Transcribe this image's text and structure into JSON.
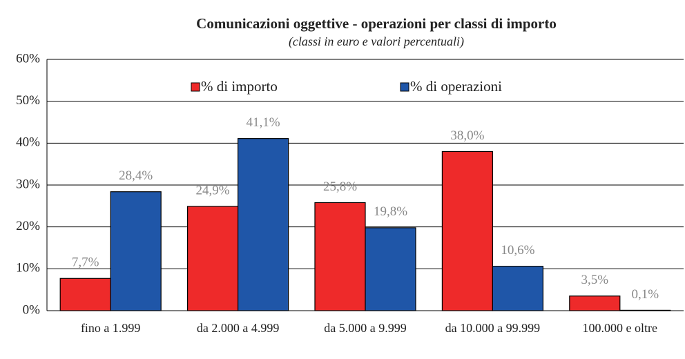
{
  "chart_data": {
    "type": "bar",
    "title": "Comunicazioni oggettive - operazioni per classi di importo",
    "subtitle": "(classi in euro e valori percentuali)",
    "categories": [
      "fino a 1.999",
      "da 2.000 a 4.999",
      "da 5.000 a 9.999",
      "da 10.000 a 99.999",
      "100.000 e oltre"
    ],
    "series": [
      {
        "name": "% di importo",
        "color": "#ee2a2a",
        "values": [
          7.7,
          24.9,
          25.8,
          38.0,
          3.5
        ],
        "value_labels": [
          "7,7%",
          "24,9%",
          "25,8%",
          "38,0%",
          "3,5%"
        ]
      },
      {
        "name": "% di operazioni",
        "color": "#1f56a8",
        "values": [
          28.4,
          41.1,
          19.8,
          10.6,
          0.1
        ],
        "value_labels": [
          "28,4%",
          "41,1%",
          "19,8%",
          "10,6%",
          "0,1%"
        ]
      }
    ],
    "ylim": [
      0,
      60
    ],
    "yticks": [
      {
        "value": 0,
        "label": "0%"
      },
      {
        "value": 10,
        "label": "10%"
      },
      {
        "value": 20,
        "label": "20%"
      },
      {
        "value": 30,
        "label": "30%"
      },
      {
        "value": 40,
        "label": "40%"
      },
      {
        "value": 50,
        "label": "50%"
      },
      {
        "value": 60,
        "label": "60%"
      }
    ],
    "grid": true,
    "legend": "top"
  }
}
